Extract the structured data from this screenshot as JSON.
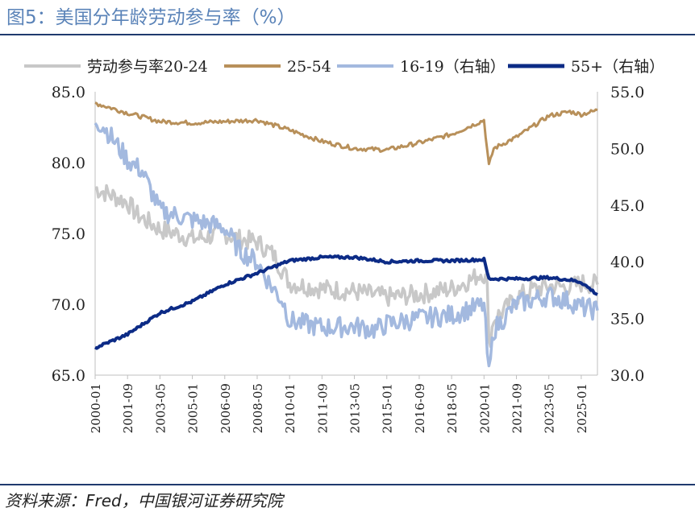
{
  "figure": {
    "title": "图5：美国分年龄劳动参与率（%）",
    "source": "资料来源：Fred，中国银河证券研究院"
  },
  "chart_data": {
    "type": "line",
    "x_tick_labels": [
      "2000-01",
      "2001-09",
      "2003-05",
      "2005-01",
      "2006-09",
      "2008-05",
      "2010-01",
      "2011-09",
      "2013-05",
      "2015-01",
      "2016-09",
      "2018-05",
      "2020-01",
      "2021-09",
      "2023-05",
      "2025-01"
    ],
    "x_range": [
      "2000-01",
      "2025-11"
    ],
    "y_left": {
      "lim": [
        65.0,
        85.0
      ],
      "ticks": [
        "65.0",
        "70.0",
        "75.0",
        "80.0",
        "85.0"
      ]
    },
    "y_right": {
      "lim": [
        30.0,
        55.0
      ],
      "ticks": [
        "30.0",
        "35.0",
        "40.0",
        "45.0",
        "50.0",
        "55.0"
      ]
    },
    "legend_position": "top",
    "series": [
      {
        "name": "劳动参与率20-24",
        "axis": "left",
        "color": "#c8c8c8",
        "points": [
          [
            "2000-01",
            78.2
          ],
          [
            "2001-09",
            77.2
          ],
          [
            "2002-03",
            76.3
          ],
          [
            "2003-05",
            75.3
          ],
          [
            "2004-06",
            74.9
          ],
          [
            "2005-01",
            74.6
          ],
          [
            "2006-09",
            75.0
          ],
          [
            "2007-06",
            74.6
          ],
          [
            "2008-05",
            74.4
          ],
          [
            "2009-03",
            73.5
          ],
          [
            "2010-01",
            71.5
          ],
          [
            "2011-09",
            71.1
          ],
          [
            "2013-05",
            70.9
          ],
          [
            "2015-01",
            70.5
          ],
          [
            "2016-09",
            70.7
          ],
          [
            "2018-05",
            71.1
          ],
          [
            "2019-06",
            71.8
          ],
          [
            "2019-12",
            72.3
          ],
          [
            "2020-03",
            71.5
          ],
          [
            "2020-04",
            67.0
          ],
          [
            "2020-07",
            69.0
          ],
          [
            "2021-01",
            69.5
          ],
          [
            "2021-09",
            70.5
          ],
          [
            "2022-06",
            71.0
          ],
          [
            "2023-05",
            71.3
          ],
          [
            "2024-06",
            71.2
          ],
          [
            "2025-01",
            71.5
          ],
          [
            "2025-11",
            71.4
          ]
        ]
      },
      {
        "name": "25-54",
        "axis": "left",
        "color": "#b8905a",
        "points": [
          [
            "2000-01",
            84.2
          ],
          [
            "2001-09",
            83.5
          ],
          [
            "2003-05",
            82.9
          ],
          [
            "2005-01",
            82.8
          ],
          [
            "2006-09",
            82.9
          ],
          [
            "2008-05",
            83.0
          ],
          [
            "2010-01",
            82.3
          ],
          [
            "2011-09",
            81.5
          ],
          [
            "2013-05",
            81.0
          ],
          [
            "2015-01",
            80.9
          ],
          [
            "2016-09",
            81.4
          ],
          [
            "2018-05",
            82.0
          ],
          [
            "2020-01",
            83.0
          ],
          [
            "2020-04",
            79.8
          ],
          [
            "2020-07",
            81.0
          ],
          [
            "2021-09",
            81.8
          ],
          [
            "2023-05",
            83.3
          ],
          [
            "2024-06",
            83.6
          ],
          [
            "2025-01",
            83.4
          ],
          [
            "2025-11",
            83.7
          ]
        ]
      },
      {
        "name": "16-19（右轴）",
        "axis": "right",
        "color": "#a3b9df",
        "points": [
          [
            "2000-01",
            52.5
          ],
          [
            "2000-06",
            52.0
          ],
          [
            "2001-09",
            49.0
          ],
          [
            "2002-06",
            48.0
          ],
          [
            "2003-05",
            44.5
          ],
          [
            "2005-01",
            43.7
          ],
          [
            "2006-09",
            43.0
          ],
          [
            "2007-06",
            41.0
          ],
          [
            "2008-05",
            40.0
          ],
          [
            "2009-01",
            38.0
          ],
          [
            "2009-09",
            36.5
          ],
          [
            "2010-01",
            34.8
          ],
          [
            "2011-09",
            34.2
          ],
          [
            "2013-05",
            34.3
          ],
          [
            "2014-06",
            34.0
          ],
          [
            "2015-01",
            34.5
          ],
          [
            "2016-09",
            35.0
          ],
          [
            "2018-05",
            35.3
          ],
          [
            "2020-01",
            36.2
          ],
          [
            "2020-04",
            30.0
          ],
          [
            "2020-07",
            34.0
          ],
          [
            "2021-09",
            36.3
          ],
          [
            "2023-05",
            37.0
          ],
          [
            "2024-06",
            36.5
          ],
          [
            "2025-01",
            36.0
          ],
          [
            "2025-11",
            35.7
          ]
        ]
      },
      {
        "name": "55+（右轴）",
        "axis": "right",
        "color": "#0c2b86",
        "points": [
          [
            "2000-01",
            32.4
          ],
          [
            "2001-09",
            33.6
          ],
          [
            "2003-05",
            35.5
          ],
          [
            "2005-01",
            36.5
          ],
          [
            "2006-09",
            38.0
          ],
          [
            "2008-05",
            39.0
          ],
          [
            "2010-01",
            40.1
          ],
          [
            "2011-09",
            40.4
          ],
          [
            "2013-05",
            40.4
          ],
          [
            "2015-01",
            40.0
          ],
          [
            "2016-09",
            40.1
          ],
          [
            "2018-05",
            40.1
          ],
          [
            "2020-01",
            40.2
          ],
          [
            "2020-04",
            38.5
          ],
          [
            "2021-09",
            38.5
          ],
          [
            "2023-05",
            38.6
          ],
          [
            "2024-06",
            38.4
          ],
          [
            "2025-01",
            38.2
          ],
          [
            "2025-11",
            37.1
          ]
        ]
      }
    ]
  }
}
